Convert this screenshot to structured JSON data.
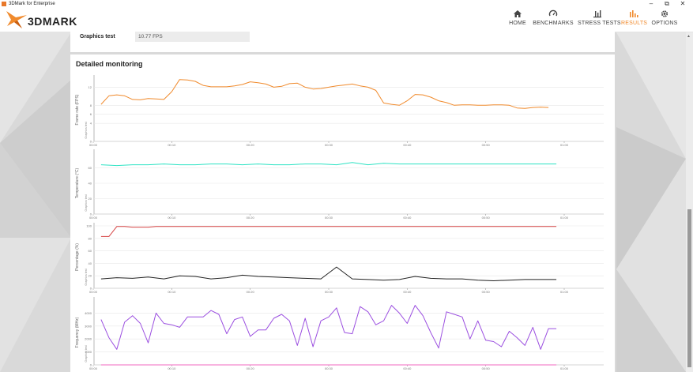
{
  "window": {
    "title": "3DMark for Enterprise",
    "controls": [
      "–",
      "⧉",
      "✕"
    ]
  },
  "header": {
    "logo_text": "3DMARK",
    "nav": [
      {
        "label": "HOME",
        "icon": "home-icon"
      },
      {
        "label": "BENCHMARKS",
        "icon": "benchmarks-icon"
      },
      {
        "label": "STRESS TESTS",
        "icon": "stress-tests-icon"
      },
      {
        "label": "RESULTS",
        "icon": "results-icon",
        "active": true
      },
      {
        "label": "OPTIONS",
        "icon": "gear-icon"
      }
    ]
  },
  "graphics_test": {
    "label": "Graphics test",
    "value": "10.77 FPS"
  },
  "monitoring": {
    "title": "Detailed monitoring",
    "section_label": "Graphics test"
  },
  "colors": {
    "accent": "#f08a2c",
    "fps": "#f08a2c",
    "temp": "#2fe3c4",
    "gpu_load": "#d64545",
    "cpu_load": "#222222",
    "freq": "#9b4fe0",
    "freq2": "#f06ac0"
  },
  "chart_data": [
    {
      "type": "line",
      "ylabel": "Frame rate (FPS)",
      "ylim": [
        0,
        14
      ],
      "yticks": [
        0,
        4,
        6,
        8,
        12
      ],
      "x_ticks": [
        "00:00",
        "00:10",
        "00:20",
        "00:30",
        "00:40",
        "00:50",
        "01:00"
      ],
      "series": [
        {
          "color": "#f08a2c",
          "x": [
            1,
            2,
            3,
            4,
            5,
            6,
            7,
            8,
            9,
            10,
            11,
            12,
            13,
            14,
            15,
            16,
            17,
            18,
            19,
            20,
            21,
            22,
            23,
            24,
            25,
            26,
            27,
            28,
            29,
            30,
            31,
            32,
            33,
            34,
            35,
            36,
            37,
            38,
            39,
            40,
            41,
            42,
            43,
            44,
            45,
            46,
            47,
            48,
            49,
            50,
            51,
            52,
            53,
            54,
            55,
            56,
            57,
            58
          ],
          "values": [
            8.2,
            10.1,
            10.3,
            10.1,
            9.3,
            9.2,
            9.5,
            9.4,
            9.3,
            11.0,
            13.7,
            13.6,
            13.3,
            12.4,
            12.1,
            12.1,
            12.1,
            12.3,
            12.6,
            13.2,
            13.0,
            12.7,
            12.0,
            12.2,
            12.8,
            12.9,
            12.0,
            11.6,
            11.7,
            12.0,
            12.3,
            12.5,
            12.7,
            12.3,
            12.0,
            11.3,
            8.5,
            8.2,
            8.0,
            9.0,
            10.4,
            10.3,
            9.8,
            9.0,
            8.6,
            8.0,
            8.1,
            8.1,
            8.0,
            8.0,
            8.1,
            8.1,
            8.0,
            7.4,
            7.3,
            7.5,
            7.6,
            7.5
          ]
        }
      ]
    },
    {
      "type": "line",
      "ylabel": "Temperature (°C)",
      "ylim": [
        0,
        80
      ],
      "yticks": [
        0,
        20,
        40,
        60
      ],
      "x_ticks": [
        "00:00",
        "00:10",
        "00:20",
        "00:30",
        "00:40",
        "00:50",
        "01:00"
      ],
      "series": [
        {
          "color": "#2fe3c4",
          "x": [
            1,
            3,
            5,
            7,
            9,
            11,
            13,
            15,
            17,
            19,
            21,
            23,
            25,
            27,
            29,
            31,
            33,
            35,
            37,
            39,
            41,
            43,
            45,
            47,
            49,
            51,
            53,
            55,
            57,
            59
          ],
          "values": [
            64,
            63,
            64,
            64,
            65,
            64,
            64,
            65,
            65,
            64,
            65,
            64,
            64,
            65,
            65,
            64,
            67,
            64,
            66,
            65,
            65,
            65,
            65,
            65,
            65,
            65,
            65,
            65,
            65,
            65
          ]
        }
      ]
    },
    {
      "type": "line",
      "ylabel": "Percentage (%)",
      "ylim": [
        0,
        100
      ],
      "yticks": [
        0,
        20,
        40,
        60,
        80,
        100
      ],
      "x_ticks": [
        "00:00",
        "00:10",
        "00:20",
        "00:30",
        "00:40",
        "00:50",
        "01:00"
      ],
      "series": [
        {
          "color": "#d64545",
          "x": [
            1,
            2,
            3,
            4,
            5,
            6,
            7,
            8,
            9,
            10,
            20,
            30,
            40,
            50,
            59
          ],
          "values": [
            83,
            83,
            99,
            99,
            98,
            98,
            98,
            99,
            99,
            99,
            99,
            99,
            99,
            99,
            99
          ]
        },
        {
          "color": "#222222",
          "x": [
            1,
            3,
            5,
            7,
            9,
            11,
            13,
            15,
            17,
            19,
            21,
            23,
            25,
            27,
            29,
            31,
            33,
            35,
            37,
            39,
            41,
            43,
            45,
            47,
            49,
            51,
            53,
            55,
            57,
            59
          ],
          "values": [
            15,
            17,
            16,
            18,
            15,
            20,
            19,
            15,
            17,
            21,
            19,
            18,
            17,
            16,
            15,
            34,
            15,
            14,
            13,
            14,
            19,
            16,
            15,
            15,
            13,
            12,
            13,
            14,
            14,
            14
          ]
        }
      ]
    },
    {
      "type": "line",
      "ylabel": "Frequency (MHz)",
      "ylim": [
        0,
        5000
      ],
      "yticks": [
        0,
        1000,
        2000,
        3000,
        4000
      ],
      "x_ticks": [
        "00:00",
        "00:10",
        "00:20",
        "00:30",
        "00:40",
        "00:50",
        "01:00"
      ],
      "series": [
        {
          "color": "#9b4fe0",
          "x": [
            1,
            2,
            3,
            4,
            5,
            6,
            7,
            8,
            9,
            10,
            11,
            12,
            13,
            14,
            15,
            16,
            17,
            18,
            19,
            20,
            21,
            22,
            23,
            24,
            25,
            26,
            27,
            28,
            29,
            30,
            31,
            32,
            33,
            34,
            35,
            36,
            37,
            38,
            39,
            40,
            41,
            42,
            43,
            44,
            45,
            46,
            47,
            48,
            49,
            50,
            51,
            52,
            53,
            54,
            55,
            56,
            57,
            58,
            59
          ],
          "values": [
            3500,
            2100,
            1200,
            3300,
            3800,
            3200,
            1700,
            4000,
            3200,
            3100,
            2900,
            3700,
            3700,
            3700,
            4200,
            3900,
            2400,
            3500,
            3700,
            2200,
            2700,
            2700,
            3600,
            3900,
            3400,
            1500,
            3600,
            1400,
            3400,
            3700,
            4400,
            2500,
            2400,
            4500,
            4100,
            3100,
            3400,
            4600,
            4000,
            3200,
            4600,
            3800,
            2500,
            1300,
            4100,
            3900,
            3700,
            2000,
            3400,
            1900,
            1800,
            1400,
            2600,
            2100,
            1500,
            2900,
            1200,
            2800,
            2800
          ]
        },
        {
          "color": "#f06ac0",
          "x": [
            1,
            59
          ],
          "values": [
            0,
            0
          ]
        }
      ]
    }
  ]
}
